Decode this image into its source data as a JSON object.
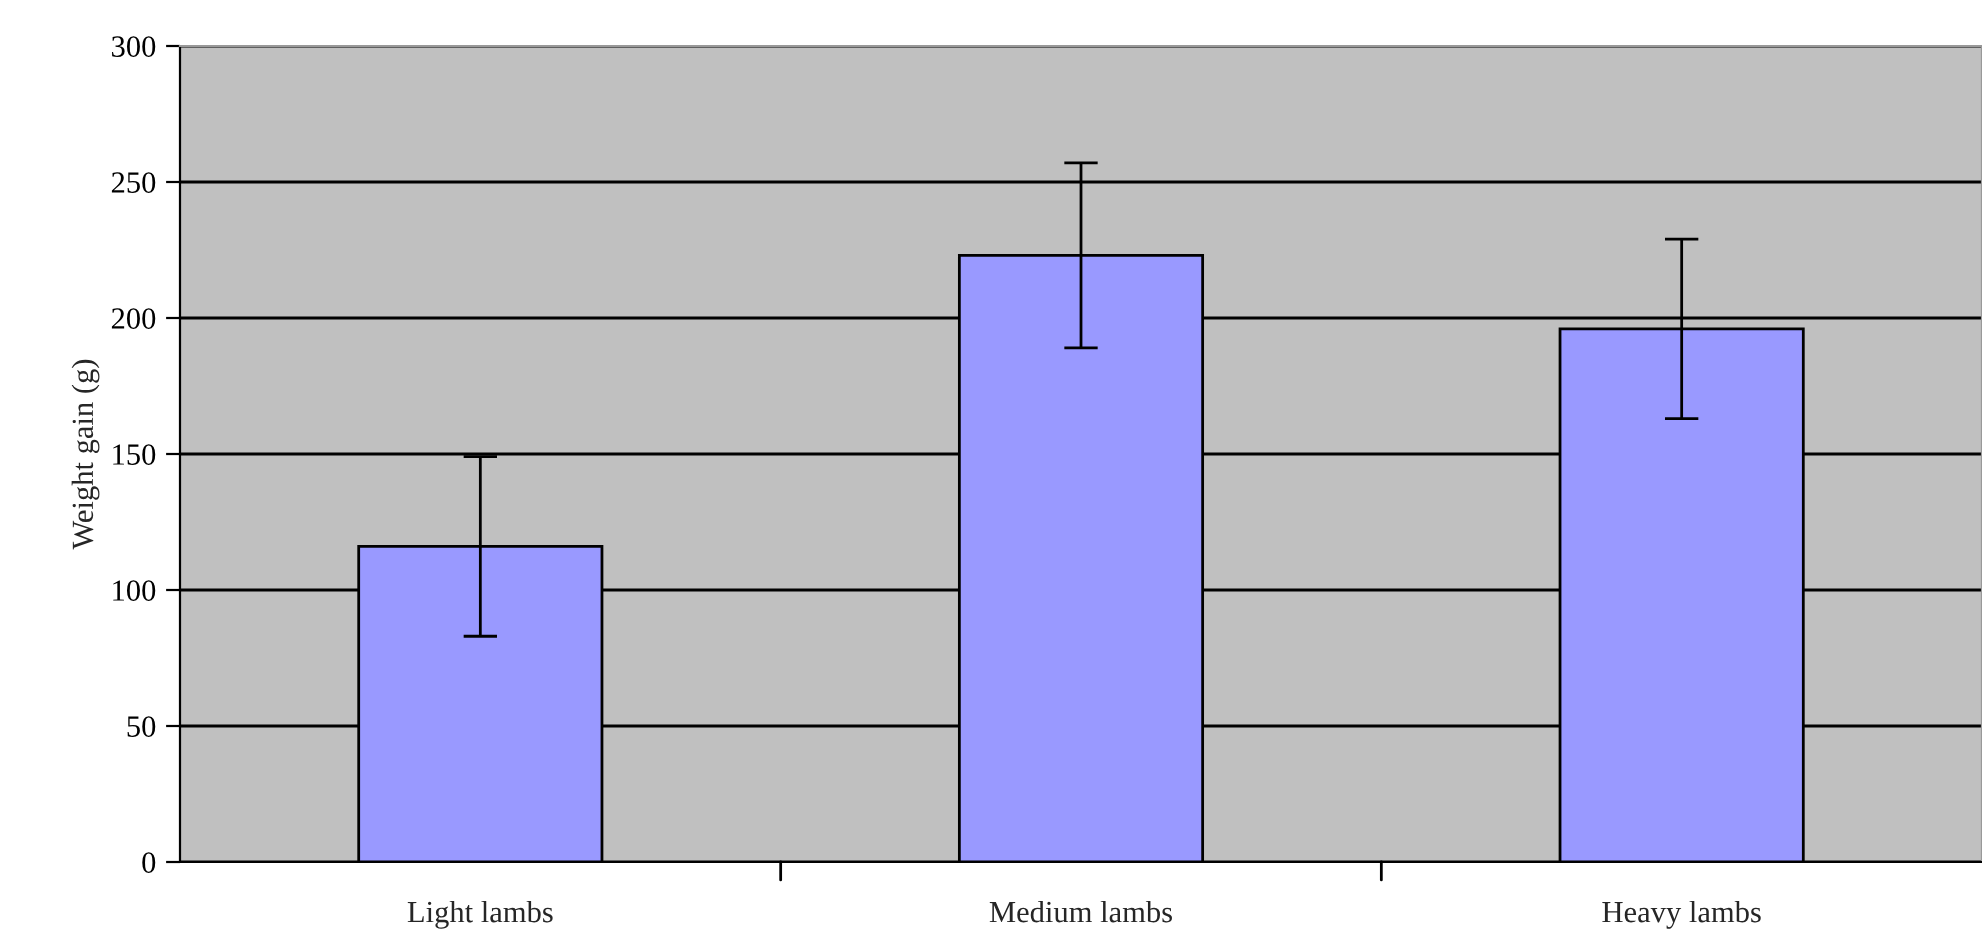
{
  "chart_data": {
    "type": "bar",
    "ylabel": "Weight gain (g)",
    "categories": [
      "Light lambs",
      "Medium lambs",
      "Heavy lambs"
    ],
    "values": [
      116,
      223,
      196
    ],
    "errors": [
      33,
      34,
      33
    ],
    "color": "#9999ff",
    "ylim": [
      0,
      300
    ],
    "yticks": [
      0,
      50,
      100,
      150,
      200,
      250,
      300
    ],
    "grid": "y"
  }
}
